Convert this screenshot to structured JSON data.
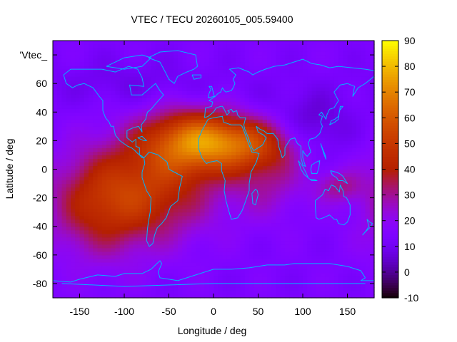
{
  "chart_data": {
    "type": "heatmap",
    "title": "VTEC / TECU 20260105_005.59400",
    "xlabel": "Longitude / deg",
    "ylabel": "Latitude / deg",
    "series_label": "'Vtec_",
    "xlim": [
      -180,
      180
    ],
    "ylim": [
      -90,
      90
    ],
    "x_ticks": [
      -150,
      -100,
      -50,
      0,
      50,
      100,
      150
    ],
    "y_ticks": [
      -80,
      -60,
      -40,
      -20,
      0,
      20,
      40,
      60,
      80
    ],
    "y_tick_labels": [
      "-80",
      "-60",
      "-40",
      "-20",
      "0",
      "20",
      "40",
      "60",
      "'Vtec_"
    ],
    "colorbar": {
      "range": [
        -10,
        90
      ],
      "ticks": [
        -10,
        0,
        10,
        20,
        30,
        40,
        50,
        60,
        70,
        80,
        90
      ]
    },
    "grid": false,
    "colormap": "gnuplot rgbformulae 7,5,15",
    "field": {
      "background_tec": 14,
      "anomalies": [
        {
          "lon": -20,
          "lat": 20,
          "slon": 42,
          "slat": 16,
          "amp": 48
        },
        {
          "lon": -70,
          "lat": -15,
          "slon": 50,
          "slat": 24,
          "amp": 28
        },
        {
          "lon": -130,
          "lat": -25,
          "slon": 40,
          "slat": 26,
          "amp": 22
        },
        {
          "lon": 40,
          "lat": 18,
          "slon": 38,
          "slat": 12,
          "amp": 24
        },
        {
          "lon": 60,
          "lat": -5,
          "slon": 30,
          "slat": 20,
          "amp": 14
        },
        {
          "lon": 140,
          "lat": -12,
          "slon": 18,
          "slat": 8,
          "amp": 15
        },
        {
          "lon": 110,
          "lat": 30,
          "slon": 30,
          "slat": 15,
          "amp": -10
        },
        {
          "lon": 20,
          "lat": 50,
          "slon": 60,
          "slat": 12,
          "amp": -3
        },
        {
          "lon": -100,
          "lat": 60,
          "slon": 60,
          "slat": 12,
          "amp": -5
        }
      ]
    },
    "coastline_color": "#00b4ff"
  }
}
